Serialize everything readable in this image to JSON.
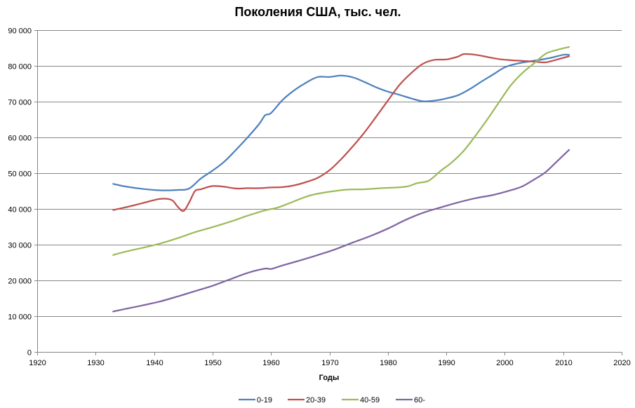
{
  "chart_data": {
    "type": "line",
    "title": "Поколения США, тыс. чел.",
    "xlabel": "Годы",
    "ylabel": "",
    "xlim": [
      1920,
      2020
    ],
    "ylim": [
      0,
      90000
    ],
    "x_ticks": [
      1920,
      1930,
      1940,
      1950,
      1960,
      1970,
      1980,
      1990,
      2000,
      2010,
      2020
    ],
    "y_ticks": [
      0,
      10000,
      20000,
      30000,
      40000,
      50000,
      60000,
      70000,
      80000,
      90000
    ],
    "x_tick_labels": [
      "1920",
      "1930",
      "1940",
      "1950",
      "1960",
      "1970",
      "1980",
      "1990",
      "2000",
      "2010",
      "2020"
    ],
    "y_tick_labels": [
      "0",
      "10 000",
      "20 000",
      "30 000",
      "40 000",
      "50 000",
      "60 000",
      "70 000",
      "80 000",
      "90 000"
    ],
    "grid": "horizontal",
    "legend_position": "bottom",
    "series": [
      {
        "name": "0-19",
        "color": "#4F81BD",
        "x": [
          1933,
          1935,
          1938,
          1941,
          1944,
          1946,
          1948,
          1950,
          1952,
          1954,
          1956,
          1958,
          1959,
          1960,
          1962,
          1964,
          1966,
          1968,
          1970,
          1972,
          1974,
          1976,
          1978,
          1980,
          1982,
          1984,
          1986,
          1988,
          1990,
          1992,
          1994,
          1996,
          1998,
          2000,
          2002,
          2004,
          2006,
          2008,
          2010,
          2011
        ],
        "y": [
          47000,
          46300,
          45600,
          45200,
          45300,
          45700,
          48500,
          50700,
          53200,
          56500,
          60000,
          63800,
          66200,
          66800,
          70500,
          73200,
          75300,
          76900,
          76900,
          77300,
          76800,
          75500,
          74000,
          72800,
          71900,
          70900,
          70100,
          70300,
          70900,
          71800,
          73500,
          75600,
          77600,
          79600,
          80600,
          81200,
          81700,
          82300,
          83100,
          83100
        ]
      },
      {
        "name": "20-39",
        "color": "#C0504D",
        "x": [
          1933,
          1935,
          1938,
          1941,
          1943,
          1944,
          1945,
          1946,
          1947,
          1948,
          1950,
          1952,
          1954,
          1956,
          1958,
          1960,
          1962,
          1964,
          1966,
          1968,
          1970,
          1972,
          1974,
          1976,
          1978,
          1980,
          1982,
          1984,
          1986,
          1988,
          1990,
          1992,
          1993,
          1995,
          1997,
          1999,
          2001,
          2003,
          2005,
          2007,
          2009,
          2011
        ],
        "y": [
          39700,
          40400,
          41600,
          42800,
          42500,
          40700,
          39400,
          41800,
          45000,
          45500,
          46400,
          46200,
          45700,
          45800,
          45800,
          46000,
          46100,
          46600,
          47500,
          48700,
          50800,
          53900,
          57500,
          61400,
          65800,
          70300,
          74700,
          78000,
          80600,
          81700,
          81800,
          82600,
          83300,
          83100,
          82500,
          81900,
          81600,
          81400,
          81200,
          81000,
          81800,
          82700
        ]
      },
      {
        "name": "40-59",
        "color": "#9BBB59",
        "x": [
          1933,
          1935,
          1938,
          1941,
          1944,
          1947,
          1950,
          1953,
          1956,
          1959,
          1961,
          1963,
          1965,
          1967,
          1970,
          1973,
          1976,
          1979,
          1983,
          1985,
          1987,
          1989,
          1991,
          1993,
          1995,
          1997,
          1999,
          2001,
          2003,
          2005,
          2007,
          2009,
          2011
        ],
        "y": [
          27100,
          28000,
          29100,
          30300,
          31800,
          33500,
          34900,
          36400,
          38100,
          39600,
          40300,
          41500,
          42800,
          43900,
          44800,
          45400,
          45500,
          45800,
          46200,
          47200,
          47900,
          50600,
          53100,
          56300,
          60500,
          65000,
          69800,
          74500,
          78000,
          80700,
          83400,
          84500,
          85300
        ]
      },
      {
        "name": "60-",
        "color": "#8064A2",
        "x": [
          1933,
          1935,
          1938,
          1941,
          1944,
          1947,
          1950,
          1953,
          1956,
          1959,
          1960,
          1962,
          1965,
          1968,
          1971,
          1974,
          1977,
          1980,
          1983,
          1986,
          1989,
          1992,
          1995,
          1998,
          2001,
          2003,
          2005,
          2007,
          2009,
          2011
        ],
        "y": [
          11300,
          12000,
          13000,
          14100,
          15500,
          17000,
          18500,
          20300,
          22100,
          23300,
          23200,
          24200,
          25600,
          27100,
          28700,
          30600,
          32400,
          34500,
          36900,
          38900,
          40400,
          41800,
          43000,
          43900,
          45200,
          46300,
          48200,
          50300,
          53400,
          56500
        ]
      }
    ]
  }
}
